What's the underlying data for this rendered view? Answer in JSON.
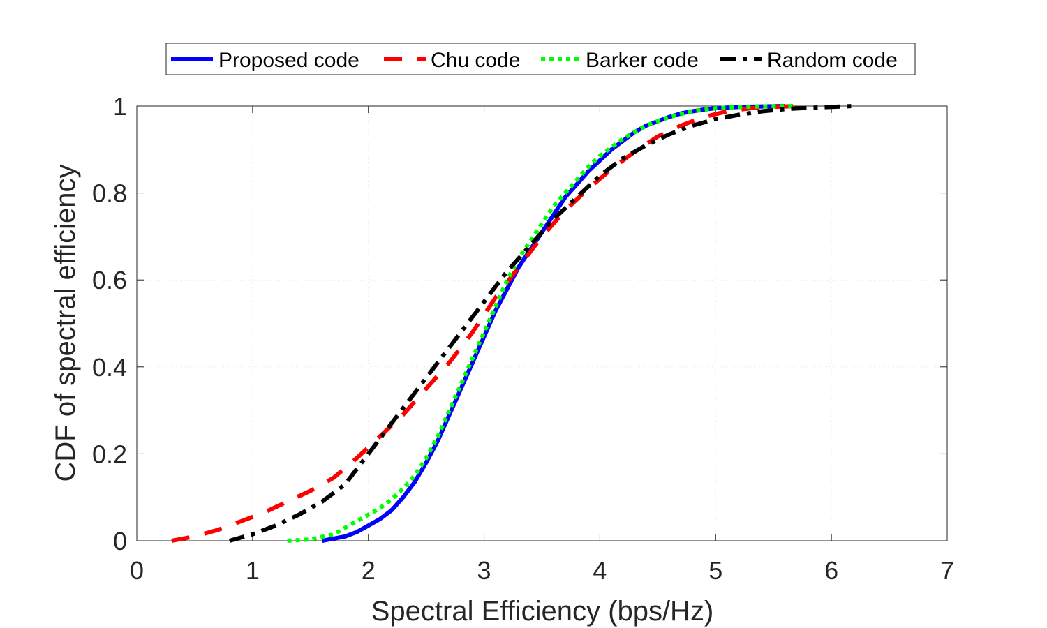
{
  "chart_data": {
    "type": "line",
    "title": "",
    "xlabel": "Spectral Efficiency (bps/Hz)",
    "ylabel": "CDF of spectral efficiency",
    "xlim": [
      0,
      7
    ],
    "ylim": [
      0,
      1
    ],
    "xticks": [
      0,
      1,
      2,
      3,
      4,
      5,
      6,
      7
    ],
    "yticks": [
      0,
      0.2,
      0.4,
      0.6,
      0.8,
      1
    ],
    "xtick_labels": [
      "0",
      "1",
      "2",
      "3",
      "4",
      "5",
      "6",
      "7"
    ],
    "ytick_labels": [
      "0",
      "0.2",
      "0.4",
      "0.6",
      "0.8",
      "1"
    ],
    "grid": true,
    "legend_position": "top",
    "series": [
      {
        "name": "Proposed code",
        "color": "#0000ff",
        "style": "solid",
        "x": [
          1.6,
          1.8,
          1.9,
          2.0,
          2.1,
          2.2,
          2.3,
          2.4,
          2.5,
          2.6,
          2.7,
          2.8,
          2.9,
          3.0,
          3.1,
          3.2,
          3.3,
          3.4,
          3.5,
          3.6,
          3.7,
          3.8,
          3.9,
          4.0,
          4.1,
          4.2,
          4.3,
          4.4,
          4.5,
          4.6,
          4.7,
          4.8,
          4.9,
          5.0,
          5.2,
          5.4,
          5.6
        ],
        "y": [
          0.0,
          0.01,
          0.02,
          0.035,
          0.05,
          0.07,
          0.1,
          0.135,
          0.18,
          0.23,
          0.29,
          0.35,
          0.41,
          0.47,
          0.53,
          0.58,
          0.63,
          0.67,
          0.71,
          0.75,
          0.79,
          0.82,
          0.85,
          0.875,
          0.9,
          0.92,
          0.94,
          0.955,
          0.965,
          0.975,
          0.983,
          0.988,
          0.992,
          0.995,
          0.998,
          0.999,
          1.0
        ]
      },
      {
        "name": "Chu code",
        "color": "#ff0000",
        "style": "dashed",
        "x": [
          0.3,
          0.5,
          0.7,
          0.9,
          1.1,
          1.3,
          1.5,
          1.7,
          1.9,
          2.1,
          2.3,
          2.5,
          2.7,
          2.9,
          3.1,
          3.3,
          3.5,
          3.7,
          3.9,
          4.1,
          4.3,
          4.5,
          4.7,
          4.9,
          5.1,
          5.3,
          5.5,
          5.7
        ],
        "y": [
          0.0,
          0.01,
          0.025,
          0.045,
          0.065,
          0.09,
          0.115,
          0.145,
          0.19,
          0.24,
          0.29,
          0.35,
          0.41,
          0.48,
          0.56,
          0.63,
          0.7,
          0.76,
          0.81,
          0.855,
          0.895,
          0.93,
          0.955,
          0.975,
          0.988,
          0.995,
          0.998,
          1.0
        ]
      },
      {
        "name": "Barker code",
        "color": "#00ff00",
        "style": "dotted",
        "x": [
          1.3,
          1.5,
          1.7,
          1.8,
          1.9,
          2.0,
          2.1,
          2.2,
          2.3,
          2.4,
          2.5,
          2.6,
          2.7,
          2.8,
          2.9,
          3.0,
          3.1,
          3.2,
          3.3,
          3.4,
          3.5,
          3.6,
          3.7,
          3.8,
          3.9,
          4.0,
          4.2,
          4.4,
          4.6,
          4.8,
          5.0,
          5.2,
          5.4,
          5.7
        ],
        "y": [
          0.0,
          0.003,
          0.015,
          0.03,
          0.045,
          0.06,
          0.075,
          0.095,
          0.12,
          0.15,
          0.19,
          0.24,
          0.3,
          0.36,
          0.42,
          0.48,
          0.54,
          0.6,
          0.65,
          0.69,
          0.73,
          0.77,
          0.8,
          0.83,
          0.86,
          0.885,
          0.925,
          0.955,
          0.975,
          0.988,
          0.995,
          0.998,
          0.999,
          1.0
        ]
      },
      {
        "name": "Random code",
        "color": "#000000",
        "style": "dashdot",
        "x": [
          0.8,
          1.0,
          1.2,
          1.4,
          1.6,
          1.8,
          2.0,
          2.2,
          2.4,
          2.6,
          2.8,
          3.0,
          3.2,
          3.4,
          3.6,
          3.8,
          4.0,
          4.2,
          4.4,
          4.6,
          4.8,
          5.0,
          5.2,
          5.4,
          5.6,
          5.8,
          6.0,
          6.2
        ],
        "y": [
          0.0,
          0.015,
          0.035,
          0.06,
          0.09,
          0.13,
          0.2,
          0.27,
          0.34,
          0.41,
          0.48,
          0.55,
          0.62,
          0.68,
          0.74,
          0.79,
          0.84,
          0.88,
          0.91,
          0.935,
          0.955,
          0.97,
          0.98,
          0.988,
          0.993,
          0.996,
          0.998,
          1.0
        ]
      }
    ]
  }
}
